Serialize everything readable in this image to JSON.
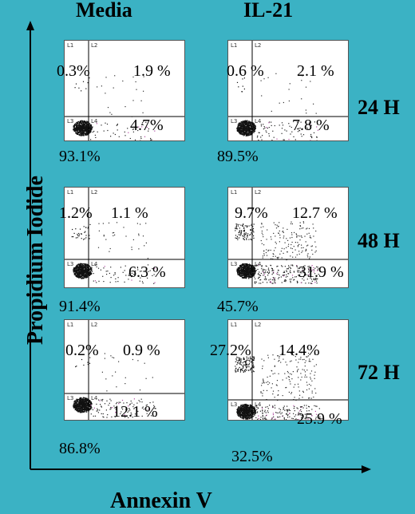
{
  "columns": [
    "Media",
    "IL-21"
  ],
  "rows": [
    "24 H",
    "48 H",
    "72 H"
  ],
  "y_axis_label": "Propidium Iodide",
  "x_axis_label": "Annexin V",
  "quadrant_labels": [
    "L1",
    "L2",
    "L3",
    "L4"
  ],
  "panels": [
    {
      "id": "media-24h",
      "ul": "0.3%",
      "ur": "1.9 %",
      "lr": "4.7%",
      "ll": "93.1%",
      "dense_ul": 0.05,
      "dense_ur": 0.1,
      "dense_lr": 0.2
    },
    {
      "id": "il21-24h",
      "ul": "0.6 %",
      "ur": "2.1 %",
      "lr": "7.8 %",
      "ll": "89.5%",
      "dense_ul": 0.05,
      "dense_ur": 0.1,
      "dense_lr": 0.3
    },
    {
      "id": "media-48h",
      "ul": "1.2%",
      "ur": "1.1 %",
      "lr": "6.3 %",
      "ll": "91.4%",
      "dense_ul": 0.2,
      "dense_ur": 0.15,
      "dense_lr": 0.25
    },
    {
      "id": "il21-48h",
      "ul": "9.7%",
      "ur": "12.7 %",
      "lr": "31.9 %",
      "ll": "45.7%",
      "dense_ul": 0.6,
      "dense_ur": 0.8,
      "dense_lr": 0.9
    },
    {
      "id": "media-72h",
      "ul": "0.2%",
      "ur": "0.9 %",
      "lr": "12.1 %",
      "ll": "86.8%",
      "dense_ul": 0.05,
      "dense_ur": 0.1,
      "dense_lr": 0.4
    },
    {
      "id": "il21-72h",
      "ul": "27.2%",
      "ur": "14.4%",
      "lr": "25.9 %",
      "ll": "32.5%",
      "dense_ul": 0.9,
      "dense_ur": 0.8,
      "dense_lr": 0.8
    }
  ]
}
